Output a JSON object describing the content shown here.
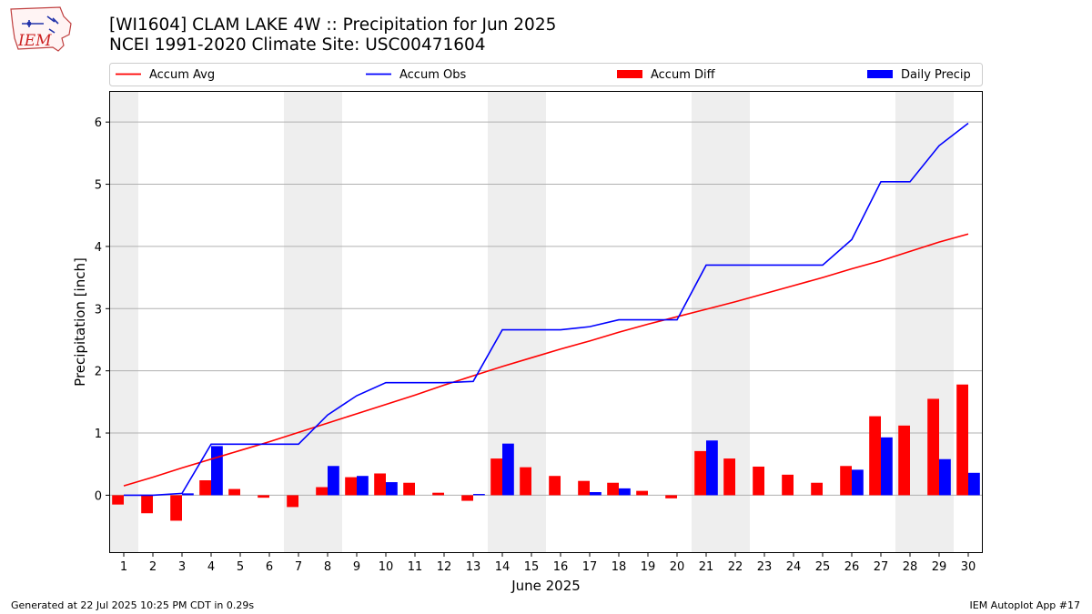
{
  "header": {
    "title_line1": "[WI1604] CLAM LAKE 4W :: Precipitation for Jun 2025",
    "title_line2": "NCEI 1991-2020 Climate Site: USC00471604"
  },
  "logo": {
    "text": "IEM",
    "icon": "iowa-state-outline-logo"
  },
  "footer": {
    "generated": "Generated at 22 Jul 2025 10:25 PM CDT in 0.29s",
    "app": "IEM Autoplot App #17"
  },
  "chart_data": {
    "type": "bar",
    "title": "[WI1604] CLAM LAKE 4W :: Precipitation for Jun 2025",
    "subtitle": "NCEI 1991-2020 Climate Site: USC00471604",
    "xlabel": "June 2025",
    "ylabel": "Precipitation [inch]",
    "xlim": [
      0.5,
      30.5
    ],
    "ylim": [
      -0.93,
      6.5
    ],
    "yticks": [
      0,
      1,
      2,
      3,
      4,
      5,
      6
    ],
    "grid": "horizontal",
    "legend_position": "top",
    "weekend_days": [
      1,
      7,
      8,
      14,
      15,
      21,
      22,
      28,
      29
    ],
    "days": [
      1,
      2,
      3,
      4,
      5,
      6,
      7,
      8,
      9,
      10,
      11,
      12,
      13,
      14,
      15,
      16,
      17,
      18,
      19,
      20,
      21,
      22,
      23,
      24,
      25,
      26,
      27,
      28,
      29,
      30
    ],
    "series": [
      {
        "name": "Accum Avg",
        "kind": "line",
        "color": "#ff0000",
        "values": [
          0.15,
          0.29,
          0.44,
          0.58,
          0.72,
          0.86,
          1.01,
          1.16,
          1.31,
          1.46,
          1.61,
          1.77,
          1.92,
          2.07,
          2.21,
          2.35,
          2.48,
          2.62,
          2.75,
          2.87,
          2.99,
          3.11,
          3.24,
          3.37,
          3.5,
          3.64,
          3.77,
          3.92,
          4.07,
          4.2
        ]
      },
      {
        "name": "Accum Obs",
        "kind": "line",
        "color": "#0000ff",
        "values": [
          0.0,
          0.0,
          0.03,
          0.82,
          0.82,
          0.82,
          0.82,
          1.29,
          1.6,
          1.81,
          1.81,
          1.81,
          1.83,
          2.66,
          2.66,
          2.66,
          2.71,
          2.82,
          2.82,
          2.82,
          3.7,
          3.7,
          3.7,
          3.7,
          3.7,
          4.11,
          5.04,
          5.04,
          5.62,
          5.98
        ]
      },
      {
        "name": "Accum Diff",
        "kind": "bar",
        "color": "#ff0000",
        "values": [
          -0.15,
          -0.29,
          -0.41,
          0.24,
          0.1,
          -0.04,
          -0.19,
          0.13,
          0.29,
          0.35,
          0.2,
          0.04,
          -0.09,
          0.59,
          0.45,
          0.31,
          0.23,
          0.2,
          0.07,
          -0.05,
          0.71,
          0.59,
          0.46,
          0.33,
          0.2,
          0.47,
          1.27,
          1.12,
          1.55,
          1.78
        ]
      },
      {
        "name": "Daily Precip",
        "kind": "bar",
        "color": "#0000ff",
        "values": [
          0.0,
          0.0,
          0.03,
          0.79,
          0.0,
          0.0,
          0.0,
          0.47,
          0.31,
          0.21,
          0.0,
          0.0,
          0.02,
          0.83,
          0.0,
          0.0,
          0.05,
          0.11,
          0.0,
          0.0,
          0.88,
          0.0,
          0.0,
          0.0,
          0.0,
          0.41,
          0.93,
          0.0,
          0.58,
          0.36
        ]
      }
    ]
  }
}
